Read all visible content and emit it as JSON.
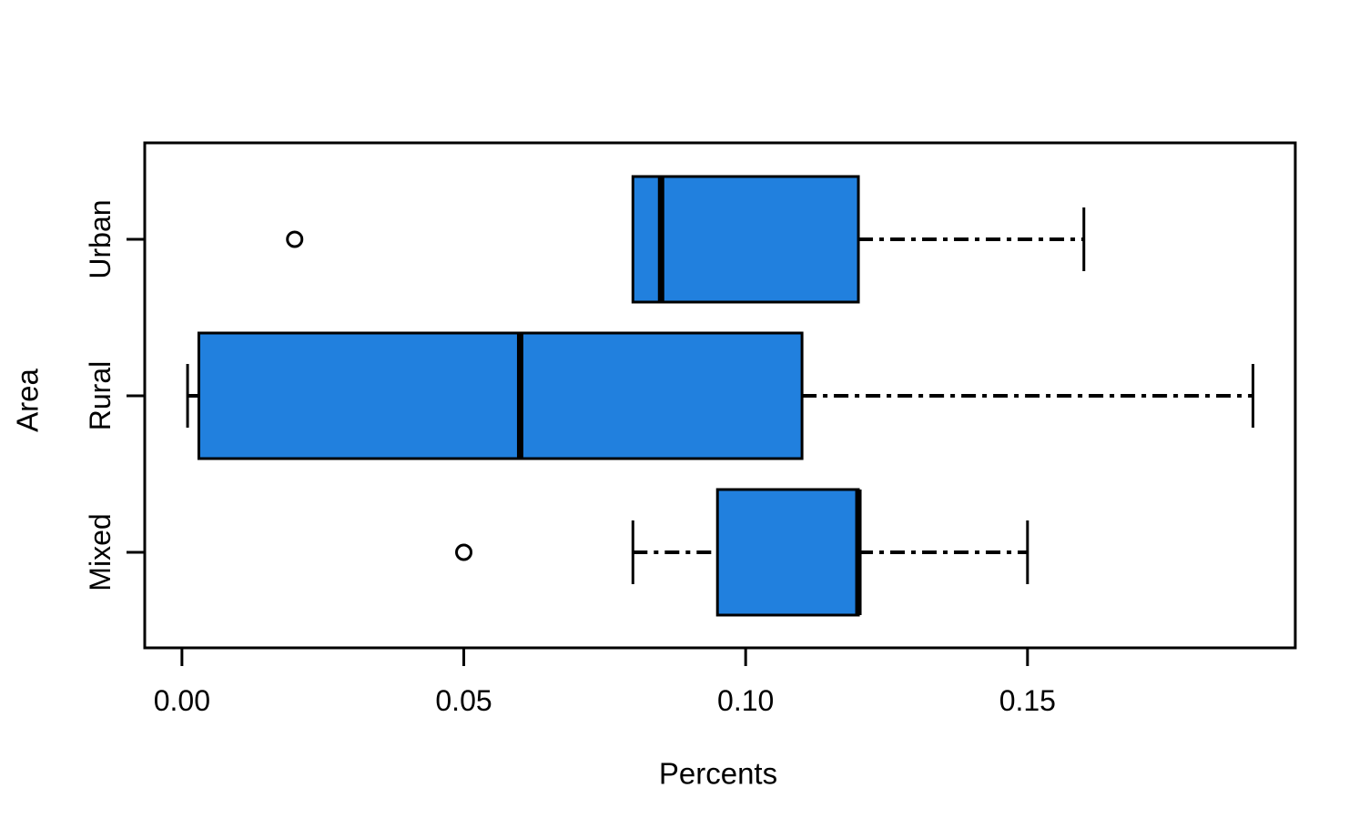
{
  "chart_data": {
    "type": "boxplot",
    "orientation": "horizontal",
    "title": "",
    "xlabel": "Percents",
    "ylabel": "Area",
    "categories": [
      "Urban",
      "Rural",
      "Mixed"
    ],
    "series": [
      {
        "name": "Urban",
        "whisker_low": 0.08,
        "q1": 0.08,
        "median": 0.085,
        "q3": 0.12,
        "whisker_high": 0.16,
        "outliers": [
          0.02
        ]
      },
      {
        "name": "Rural",
        "whisker_low": 0.001,
        "q1": 0.003,
        "median": 0.06,
        "q3": 0.11,
        "whisker_high": 0.19,
        "outliers": []
      },
      {
        "name": "Mixed",
        "whisker_low": 0.08,
        "q1": 0.095,
        "median": 0.12,
        "q3": 0.12,
        "whisker_high": 0.15,
        "outliers": [
          0.05
        ]
      }
    ],
    "xticks": [
      0.0,
      0.05,
      0.1,
      0.15
    ],
    "xtick_labels": [
      "0.00",
      "0.05",
      "0.10",
      "0.15"
    ],
    "xlim": [
      -0.0066,
      0.1975
    ],
    "grid": false,
    "legend": "none",
    "whisker_line_style": "dash-dot",
    "colors": {
      "box_fill": "#2180DE",
      "stroke": "#000000",
      "background": "#FFFFFF"
    }
  }
}
